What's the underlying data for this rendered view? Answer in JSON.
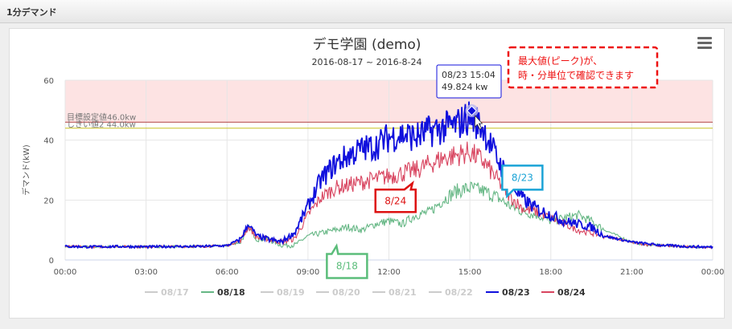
{
  "header": {
    "title": "1分デマンド"
  },
  "chart_data": {
    "type": "line",
    "title": "デモ学園 (demo)",
    "subtitle": "2016-08-17 ~ 2016-8-24",
    "ylabel": "デマンド(kW)",
    "xlabel": "",
    "xlim": [
      "00:00",
      "24:00"
    ],
    "ylim": [
      0,
      60
    ],
    "x_ticks": [
      "00:00",
      "03:00",
      "06:00",
      "09:00",
      "12:00",
      "15:00",
      "18:00",
      "21:00",
      "00:00"
    ],
    "y_ticks": [
      0,
      20,
      40,
      60
    ],
    "bands": [
      {
        "from": 46,
        "to": 60,
        "color": "#fde3e3"
      }
    ],
    "plot_lines": [
      {
        "value": 46,
        "label": "目標設定値46.0kw",
        "color": "#b04040"
      },
      {
        "value": 44,
        "label": "しきい値2 44.0kw",
        "color": "#c8c020"
      }
    ],
    "series": [
      {
        "name": "08/17",
        "visible": false,
        "color": "#cccccc",
        "values": []
      },
      {
        "name": "08/18",
        "visible": true,
        "color": "#66b785",
        "values": [
          [
            0,
            4.5
          ],
          [
            1,
            4.4
          ],
          [
            2,
            4.5
          ],
          [
            3,
            4.4
          ],
          [
            4,
            4.5
          ],
          [
            5,
            4.5
          ],
          [
            6,
            4.8
          ],
          [
            6.5,
            6
          ],
          [
            6.8,
            11
          ],
          [
            7.1,
            7
          ],
          [
            7.5,
            7
          ],
          [
            8,
            5
          ],
          [
            8.5,
            5
          ],
          [
            9,
            8
          ],
          [
            9.5,
            9
          ],
          [
            10,
            10
          ],
          [
            10.5,
            11
          ],
          [
            11,
            10
          ],
          [
            11.5,
            12
          ],
          [
            12,
            13
          ],
          [
            12.5,
            12
          ],
          [
            13,
            15
          ],
          [
            13.5,
            16
          ],
          [
            14,
            20
          ],
          [
            14.5,
            23
          ],
          [
            15,
            24
          ],
          [
            15.5,
            23
          ],
          [
            16,
            21
          ],
          [
            16.5,
            18
          ],
          [
            17,
            16
          ],
          [
            17.5,
            15
          ],
          [
            18,
            13
          ],
          [
            18.5,
            14
          ],
          [
            19,
            15
          ],
          [
            19.5,
            13
          ],
          [
            20,
            10
          ],
          [
            20.5,
            8
          ],
          [
            21,
            6
          ],
          [
            21.5,
            5
          ],
          [
            22,
            5
          ],
          [
            23,
            4.5
          ],
          [
            24,
            4.3
          ]
        ]
      },
      {
        "name": "08/19",
        "visible": false,
        "color": "#cccccc",
        "values": []
      },
      {
        "name": "08/20",
        "visible": false,
        "color": "#cccccc",
        "values": []
      },
      {
        "name": "08/21",
        "visible": false,
        "color": "#cccccc",
        "values": []
      },
      {
        "name": "08/22",
        "visible": false,
        "color": "#cccccc",
        "values": []
      },
      {
        "name": "08/23",
        "visible": true,
        "color": "#1010dd",
        "values": [
          [
            0,
            4.5
          ],
          [
            1,
            4.4
          ],
          [
            2,
            4.5
          ],
          [
            3,
            4.4
          ],
          [
            4,
            4.5
          ],
          [
            5,
            4.5
          ],
          [
            6,
            4.8
          ],
          [
            6.5,
            7
          ],
          [
            6.8,
            12
          ],
          [
            7.1,
            8
          ],
          [
            7.5,
            7
          ],
          [
            8,
            6
          ],
          [
            8.5,
            9
          ],
          [
            9,
            18
          ],
          [
            9.5,
            27
          ],
          [
            10,
            32
          ],
          [
            10.5,
            35
          ],
          [
            11,
            37
          ],
          [
            11.5,
            38
          ],
          [
            12,
            41
          ],
          [
            12.5,
            42
          ],
          [
            13,
            41
          ],
          [
            13.5,
            43
          ],
          [
            14,
            44
          ],
          [
            14.5,
            45
          ],
          [
            15,
            48
          ],
          [
            15.5,
            44
          ],
          [
            16,
            34
          ],
          [
            16.5,
            26
          ],
          [
            17,
            20
          ],
          [
            17.5,
            17
          ],
          [
            18,
            15
          ],
          [
            18.5,
            13
          ],
          [
            19,
            12
          ],
          [
            19.5,
            11
          ],
          [
            20,
            8
          ],
          [
            20.5,
            7
          ],
          [
            21,
            6
          ],
          [
            21.5,
            5.5
          ],
          [
            22,
            5
          ],
          [
            23,
            4.5
          ],
          [
            24,
            4.3
          ]
        ]
      },
      {
        "name": "08/24",
        "visible": true,
        "color": "#d8445f",
        "values": [
          [
            0,
            4.5
          ],
          [
            1,
            4.4
          ],
          [
            2,
            4.5
          ],
          [
            3,
            4.4
          ],
          [
            4,
            4.5
          ],
          [
            5,
            4.5
          ],
          [
            6,
            4.8
          ],
          [
            6.5,
            6.5
          ],
          [
            6.8,
            11
          ],
          [
            7.1,
            7.5
          ],
          [
            7.5,
            7
          ],
          [
            8,
            6
          ],
          [
            8.5,
            7
          ],
          [
            9,
            15
          ],
          [
            9.5,
            21
          ],
          [
            10,
            24
          ],
          [
            10.5,
            25
          ],
          [
            11,
            26
          ],
          [
            11.5,
            27
          ],
          [
            12,
            28
          ],
          [
            12.5,
            29
          ],
          [
            13,
            30
          ],
          [
            13.5,
            32
          ],
          [
            14,
            34
          ],
          [
            14.5,
            35
          ],
          [
            15,
            36
          ],
          [
            15.5,
            33
          ],
          [
            16,
            27
          ],
          [
            16.5,
            21
          ],
          [
            17,
            17
          ],
          [
            17.5,
            16
          ],
          [
            18,
            14
          ],
          [
            18.5,
            12
          ],
          [
            19,
            10
          ],
          [
            19.5,
            9
          ],
          [
            20,
            8
          ],
          [
            20.5,
            7
          ],
          [
            21,
            6
          ],
          [
            21.5,
            5
          ],
          [
            22,
            4.8
          ],
          [
            23,
            4.5
          ],
          [
            24,
            4.3
          ]
        ]
      }
    ],
    "tooltip": {
      "date_time": "08/23 15:04",
      "value_text": "49.824 kw",
      "x": 15.07,
      "y": 49.824
    },
    "annotations": [
      {
        "text": "8/23",
        "color": "#1aa3d6",
        "x": 16.2,
        "y": 31.5
      },
      {
        "text": "8/24",
        "color": "#dd1111",
        "x": 11.5,
        "y": 23.5
      },
      {
        "text": "8/18",
        "color": "#5bbd7a",
        "x": 9.7,
        "y": 2
      }
    ],
    "callout": {
      "line1": "最大値(ピーク)が、",
      "line2": "時・分単位で確認できます",
      "color": "#ee1111"
    },
    "legend_position": "bottom"
  }
}
